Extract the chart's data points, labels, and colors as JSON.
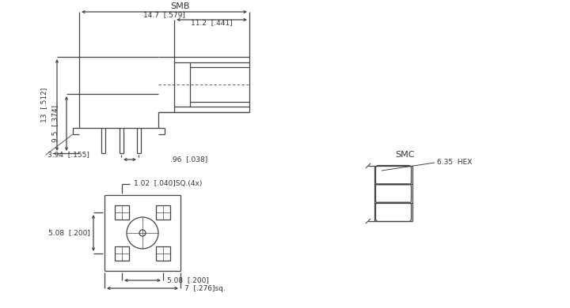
{
  "line_color": "#444444",
  "text_color": "#333333",
  "font_size": 6.5,
  "title_font_size": 8,
  "fig_width": 7.2,
  "fig_height": 3.9,
  "smb_label": "SMB",
  "smc_label": "SMC",
  "hex_label": "6.35  HEX",
  "dim_147": "14.7  [.579]",
  "dim_112": "11.2  [.441]",
  "dim_13": "13  [.512]",
  "dim_95": "9.5  [.374]",
  "dim_394": "3.94  [.155]",
  "dim_096": ".96  [.038]",
  "dim_102": "1.02  [.040]SQ.(4x)",
  "dim_508h": "5.08  [.200]",
  "dim_508v": "5.08  [.200]",
  "dim_7": "7  [.276]sq."
}
